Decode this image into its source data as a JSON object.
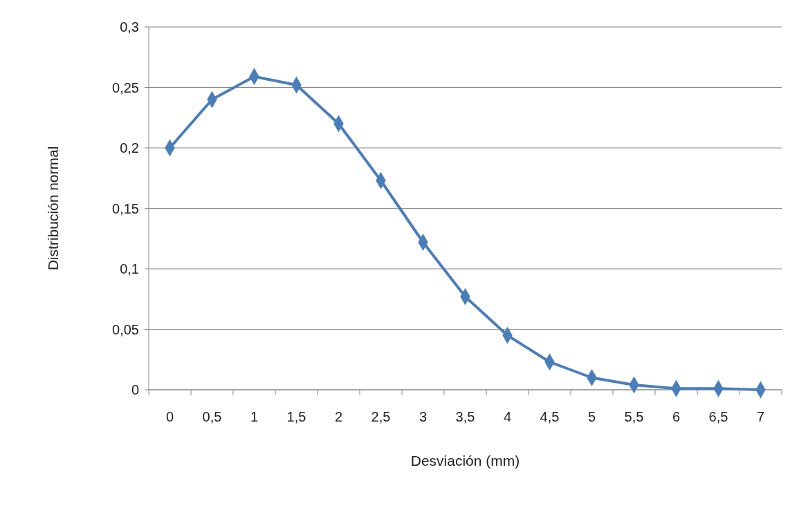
{
  "chart_data": {
    "type": "line",
    "xlabel": "Desviación (mm)",
    "ylabel": "Distribución normal",
    "categories": [
      "0",
      "0,5",
      "1",
      "1,5",
      "2",
      "2,5",
      "3",
      "3,5",
      "4",
      "4,5",
      "5",
      "5,5",
      "6",
      "6,5",
      "7"
    ],
    "series": [
      {
        "color": "#4a7ebb",
        "values": [
          0.2,
          0.24,
          0.259,
          0.252,
          0.22,
          0.173,
          0.122,
          0.077,
          0.045,
          0.023,
          0.01,
          0.004,
          0.001,
          0.001,
          0
        ]
      }
    ],
    "ylim": [
      0,
      0.3
    ],
    "yticks": [
      0,
      {
        "value": 0.05,
        "label": "0,05"
      },
      {
        "value": 0.1,
        "label": "0,1"
      },
      {
        "value": 0.15,
        "label": "0,15"
      },
      {
        "value": 0.2,
        "label": "0,2"
      },
      {
        "value": 0.25,
        "label": "0,25"
      },
      {
        "value": 0.3,
        "label": "0,3"
      }
    ],
    "grid": "y",
    "marker": "diamond",
    "line_style": "solid"
  }
}
